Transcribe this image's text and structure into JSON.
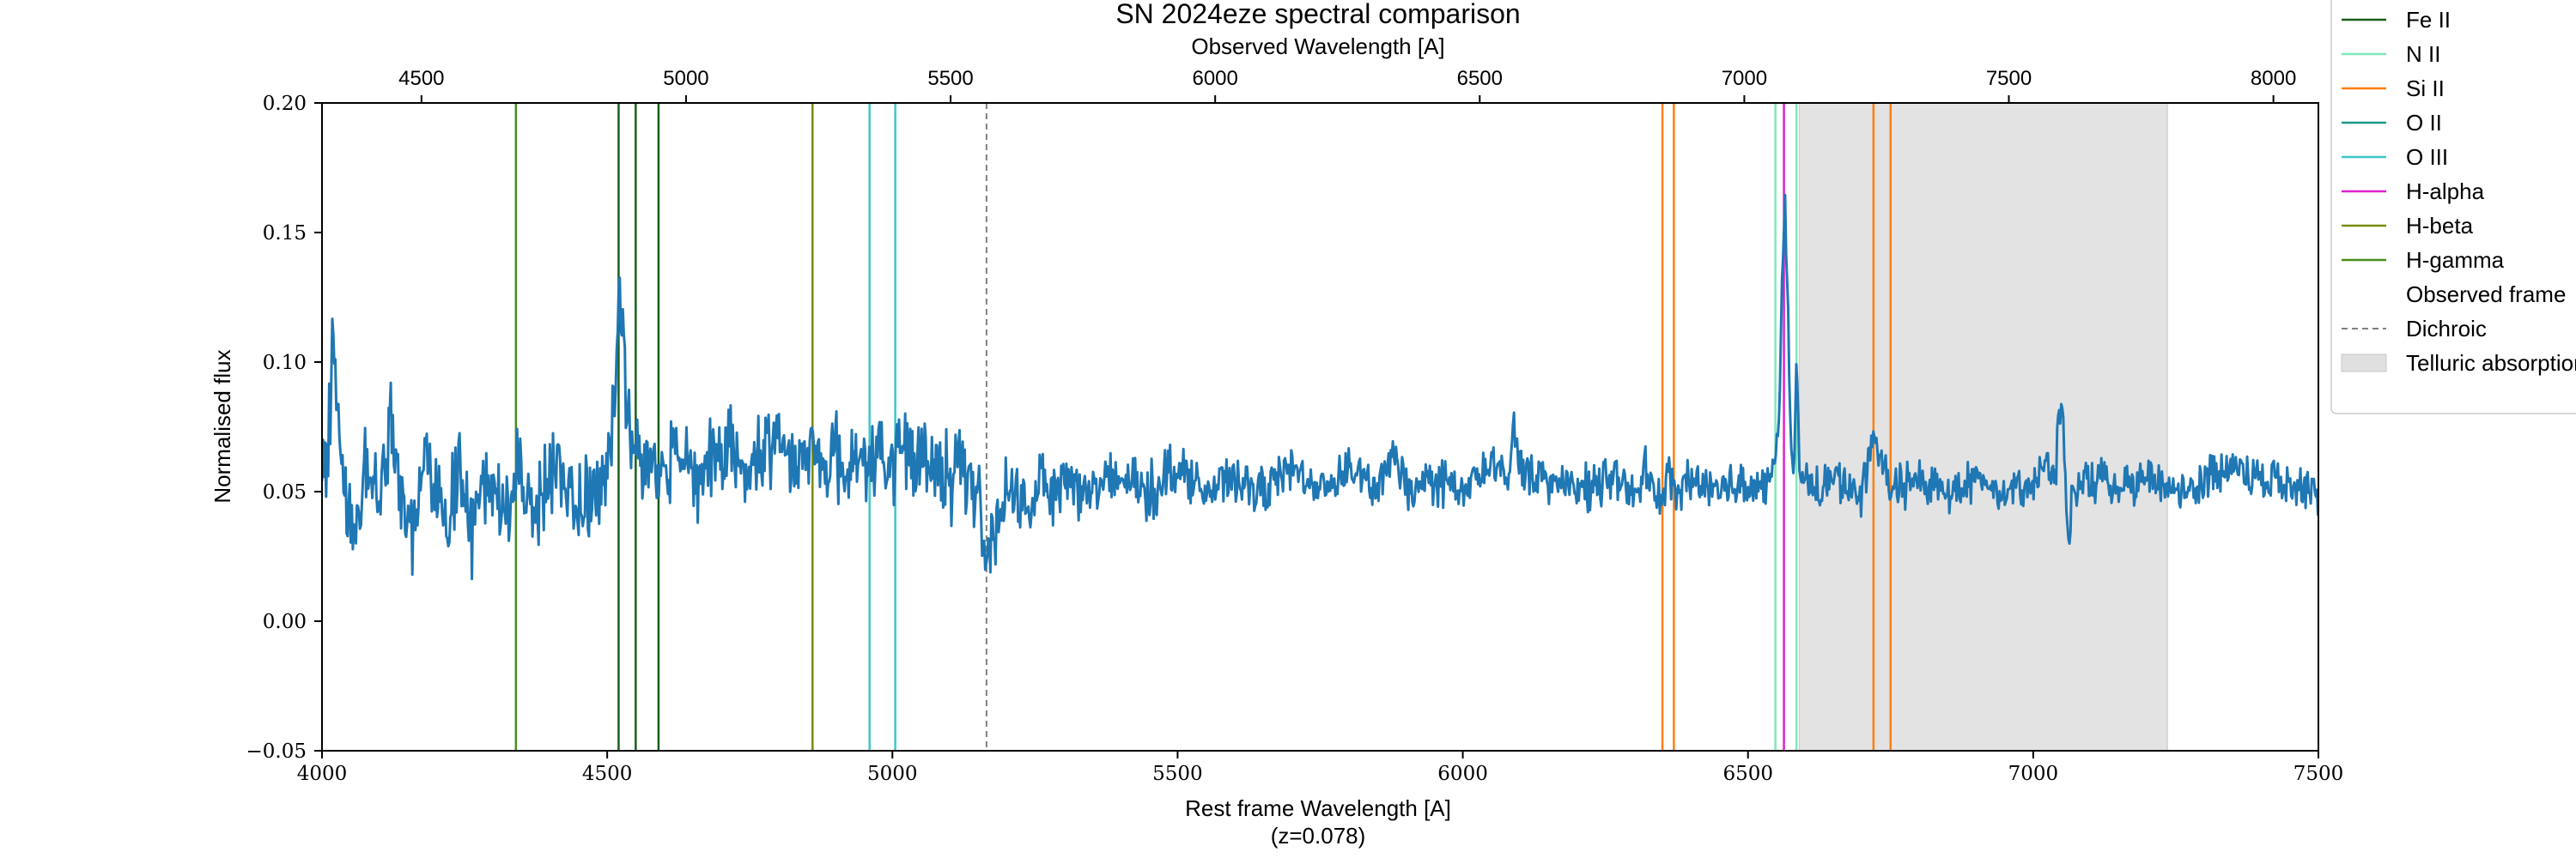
{
  "chart_data": {
    "type": "line",
    "title": "SN 2024eze spectral comparison",
    "xlabel": "Rest frame Wavelength [A]",
    "xlabel_sub": "(z=0.078)",
    "x2label": "Observed Wavelength [A]",
    "ylabel": "Normalised flux",
    "xlim": [
      4000,
      7500
    ],
    "ylim": [
      -0.05,
      0.2
    ],
    "redshift": 0.078,
    "x_ticks": [
      4000,
      4500,
      5000,
      5500,
      6000,
      6500,
      7000,
      7500
    ],
    "x_tick_labels": [
      "4000",
      "4500",
      "5000",
      "5500",
      "6000",
      "6500",
      "7000",
      "7500"
    ],
    "x2_ticks": [
      4500,
      5000,
      5500,
      6000,
      6500,
      7000,
      7500,
      8000
    ],
    "x2_tick_labels": [
      "4500",
      "5000",
      "5500",
      "6000",
      "6500",
      "7000",
      "7500",
      "8000"
    ],
    "y_ticks": [
      -0.05,
      0.0,
      0.05,
      0.1,
      0.15,
      0.2
    ],
    "y_tick_labels": [
      "−0.05",
      "0.00",
      "0.05",
      "0.10",
      "0.15",
      "0.20"
    ],
    "spectrum": {
      "color": "#1f77b4",
      "x": [
        4000,
        4010,
        4020,
        4030,
        4040,
        4060,
        4080,
        4100,
        4120,
        4140,
        4160,
        4180,
        4200,
        4220,
        4240,
        4260,
        4280,
        4300,
        4320,
        4340,
        4360,
        4380,
        4400,
        4420,
        4440,
        4460,
        4480,
        4500,
        4510,
        4520,
        4530,
        4540,
        4560,
        4580,
        4600,
        4620,
        4640,
        4660,
        4680,
        4700,
        4720,
        4740,
        4760,
        4780,
        4800,
        4820,
        4840,
        4860,
        4880,
        4900,
        4920,
        4940,
        4960,
        4980,
        5000,
        5020,
        5040,
        5060,
        5080,
        5100,
        5120,
        5140,
        5150,
        5160,
        5170,
        5180,
        5200,
        5220,
        5240,
        5260,
        5280,
        5300,
        5350,
        5400,
        5450,
        5500,
        5550,
        5600,
        5650,
        5700,
        5750,
        5800,
        5850,
        5880,
        5900,
        5950,
        6000,
        6050,
        6080,
        6090,
        6100,
        6150,
        6200,
        6250,
        6300,
        6320,
        6340,
        6360,
        6380,
        6400,
        6450,
        6500,
        6530,
        6545,
        6555,
        6560,
        6565,
        6570,
        6575,
        6580,
        6585,
        6590,
        6600,
        6620,
        6650,
        6700,
        6720,
        6730,
        6750,
        6800,
        6850,
        6900,
        6950,
        7000,
        7040,
        7050,
        7055,
        7060,
        7070,
        7100,
        7150,
        7200,
        7250,
        7300,
        7350,
        7400,
        7450,
        7500
      ],
      "y": [
        0.055,
        0.065,
        0.113,
        0.07,
        0.05,
        0.04,
        0.06,
        0.045,
        0.08,
        0.05,
        0.035,
        0.065,
        0.05,
        0.04,
        0.06,
        0.03,
        0.055,
        0.05,
        0.04,
        0.06,
        0.05,
        0.045,
        0.055,
        0.06,
        0.05,
        0.045,
        0.055,
        0.06,
        0.075,
        0.125,
        0.1,
        0.07,
        0.06,
        0.065,
        0.055,
        0.07,
        0.06,
        0.055,
        0.065,
        0.06,
        0.07,
        0.055,
        0.065,
        0.06,
        0.075,
        0.06,
        0.065,
        0.07,
        0.06,
        0.065,
        0.055,
        0.07,
        0.06,
        0.065,
        0.055,
        0.07,
        0.06,
        0.065,
        0.06,
        0.055,
        0.065,
        0.05,
        0.045,
        0.03,
        0.02,
        0.04,
        0.045,
        0.05,
        0.04,
        0.06,
        0.05,
        0.055,
        0.05,
        0.055,
        0.05,
        0.06,
        0.05,
        0.055,
        0.05,
        0.06,
        0.05,
        0.06,
        0.05,
        0.065,
        0.05,
        0.055,
        0.05,
        0.06,
        0.055,
        0.075,
        0.06,
        0.055,
        0.05,
        0.055,
        0.05,
        0.06,
        0.045,
        0.055,
        0.05,
        0.055,
        0.05,
        0.055,
        0.05,
        0.06,
        0.075,
        0.14,
        0.16,
        0.12,
        0.07,
        0.05,
        0.1,
        0.06,
        0.055,
        0.05,
        0.055,
        0.05,
        0.07,
        0.065,
        0.05,
        0.055,
        0.05,
        0.055,
        0.05,
        0.055,
        0.06,
        0.09,
        0.065,
        0.03,
        0.05,
        0.055,
        0.05,
        0.055,
        0.05,
        0.055,
        0.06,
        0.055,
        0.055,
        0.05
      ]
    },
    "lines": [
      {
        "x": 4340,
        "color": "#4a8c1c"
      },
      {
        "x": 4520,
        "color": "#1a5e1a"
      },
      {
        "x": 4550,
        "color": "#1a5e1a"
      },
      {
        "x": 4590,
        "color": "#1a5e1a"
      },
      {
        "x": 4860,
        "color": "#7a8c10"
      },
      {
        "x": 4960,
        "color": "#3ec8c8"
      },
      {
        "x": 5005,
        "color": "#3ec8c8"
      },
      {
        "x": 6350,
        "color": "#ff7f0e"
      },
      {
        "x": 6370,
        "color": "#ff7f0e"
      },
      {
        "x": 6548,
        "color": "#7fe8b8"
      },
      {
        "x": 6563,
        "color": "#e020d0"
      },
      {
        "x": 6585,
        "color": "#7fe8b8"
      },
      {
        "x": 6720,
        "color": "#ff7f0e"
      },
      {
        "x": 6750,
        "color": "#ff7f0e"
      }
    ],
    "dichroic_x": 5165,
    "telluric_band": [
      6590,
      7235
    ],
    "legend_placement": "right, outside plot",
    "legend": [
      {
        "label": "Fe II",
        "color": "#1a5e1a",
        "kind": "line"
      },
      {
        "label": "N II",
        "color": "#7fe8b8",
        "kind": "line"
      },
      {
        "label": "Si II",
        "color": "#ff7f0e",
        "kind": "line"
      },
      {
        "label": "O II",
        "color": "#1a9a8a",
        "kind": "line"
      },
      {
        "label": "O III",
        "color": "#3ec8c8",
        "kind": "line"
      },
      {
        "label": "H-alpha",
        "color": "#e020d0",
        "kind": "line"
      },
      {
        "label": "H-beta",
        "color": "#7a8c10",
        "kind": "line"
      },
      {
        "label": "H-gamma",
        "color": "#4a8c1c",
        "kind": "line"
      },
      {
        "label": "Observed frame",
        "color": "",
        "kind": "header"
      },
      {
        "label": "Dichroic",
        "color": "#808080",
        "kind": "dashed"
      },
      {
        "label": "Telluric absorption",
        "color": "#e0e0e0",
        "kind": "patch"
      }
    ]
  }
}
